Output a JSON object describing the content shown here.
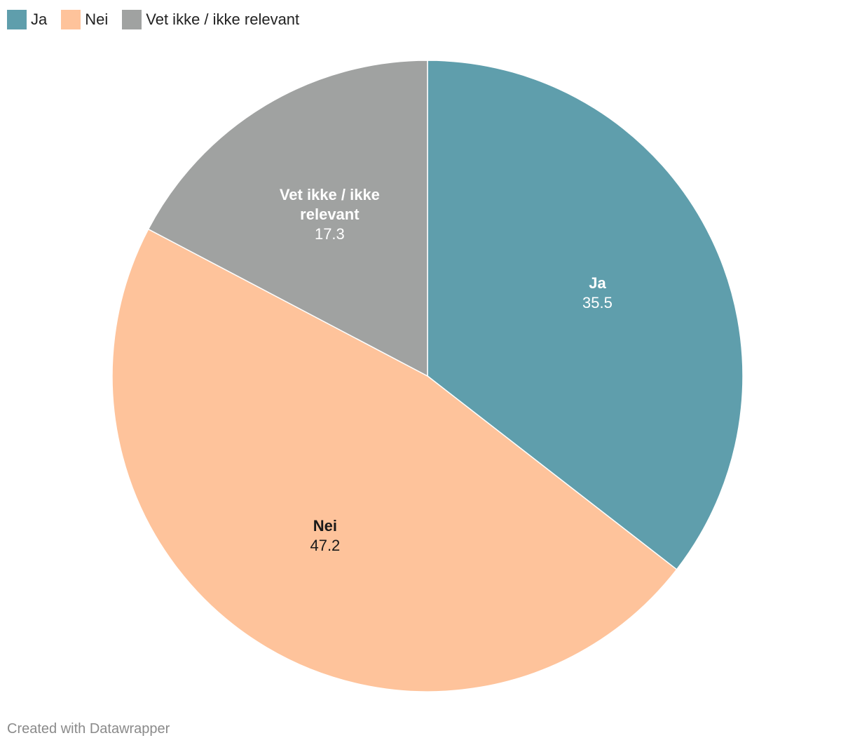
{
  "legend": {
    "items": [
      {
        "label": "Ja",
        "color": "#5f9eac"
      },
      {
        "label": "Nei",
        "color": "#fec39b"
      },
      {
        "label": "Vet ikke / ikke relevant",
        "color": "#a0a2a1"
      }
    ]
  },
  "chart_data": {
    "type": "pie",
    "start_angle_deg": 0,
    "direction": "clockwise",
    "slices": [
      {
        "label": "Ja",
        "label_lines": [
          "Ja"
        ],
        "value": 35.5,
        "value_label": "35.5",
        "color": "#5f9eac",
        "label_color": "#ffffff"
      },
      {
        "label": "Nei",
        "label_lines": [
          "Nei"
        ],
        "value": 47.2,
        "value_label": "47.2",
        "color": "#fec39b",
        "label_color": "#1a1a1a"
      },
      {
        "label": "Vet ikke / ikke relevant",
        "label_lines": [
          "Vet ikke / ikke",
          "relevant"
        ],
        "value": 17.3,
        "value_label": "17.3",
        "color": "#a0a2a1",
        "label_color": "#ffffff"
      }
    ],
    "legend_position": "top-left"
  },
  "footer": {
    "credit": "Created with Datawrapper"
  }
}
